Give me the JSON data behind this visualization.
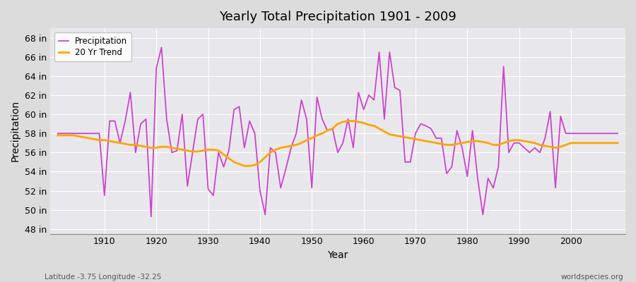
{
  "title": "Yearly Total Precipitation 1901 - 2009",
  "xlabel": "Year",
  "ylabel": "Precipitation",
  "subtitle_left": "Latitude -3.75 Longitude -32.25",
  "subtitle_right": "worldspecies.org",
  "years": [
    1901,
    1902,
    1903,
    1904,
    1905,
    1906,
    1907,
    1908,
    1909,
    1910,
    1911,
    1912,
    1913,
    1914,
    1915,
    1916,
    1917,
    1918,
    1919,
    1920,
    1921,
    1922,
    1923,
    1924,
    1925,
    1926,
    1927,
    1928,
    1929,
    1930,
    1931,
    1932,
    1933,
    1934,
    1935,
    1936,
    1937,
    1938,
    1939,
    1940,
    1941,
    1942,
    1943,
    1944,
    1945,
    1946,
    1947,
    1948,
    1949,
    1950,
    1951,
    1952,
    1953,
    1954,
    1955,
    1956,
    1957,
    1958,
    1959,
    1960,
    1961,
    1962,
    1963,
    1964,
    1965,
    1966,
    1967,
    1968,
    1969,
    1970,
    1971,
    1972,
    1973,
    1974,
    1975,
    1976,
    1977,
    1978,
    1979,
    1980,
    1981,
    1982,
    1983,
    1984,
    1985,
    1986,
    1987,
    1988,
    1989,
    1990,
    1991,
    1992,
    1993,
    1994,
    1995,
    1996,
    1997,
    1998,
    1999,
    2000,
    2001,
    2002,
    2003,
    2004,
    2005,
    2006,
    2007,
    2008,
    2009
  ],
  "precip": [
    58.0,
    58.0,
    58.0,
    58.0,
    58.0,
    58.0,
    58.0,
    58.0,
    58.0,
    51.5,
    59.3,
    59.3,
    57.0,
    59.3,
    62.3,
    56.0,
    59.0,
    59.5,
    49.3,
    64.8,
    67.0,
    59.5,
    56.0,
    56.2,
    60.0,
    52.5,
    56.0,
    59.5,
    60.0,
    52.2,
    51.5,
    56.0,
    54.5,
    56.2,
    60.5,
    60.8,
    56.5,
    59.3,
    58.0,
    52.0,
    49.5,
    56.5,
    56.0,
    52.3,
    54.3,
    56.5,
    58.0,
    61.5,
    59.5,
    52.3,
    61.8,
    59.5,
    58.3,
    58.5,
    56.0,
    57.0,
    59.5,
    56.5,
    62.3,
    60.5,
    62.0,
    61.5,
    66.5,
    59.5,
    66.5,
    62.8,
    62.5,
    55.0,
    55.0,
    58.0,
    59.0,
    58.8,
    58.5,
    57.5,
    57.5,
    53.8,
    54.5,
    58.3,
    56.5,
    53.5,
    58.3,
    53.3,
    49.5,
    53.3,
    52.3,
    54.5,
    65.0,
    56.0,
    57.0,
    57.0,
    56.5,
    56.0,
    56.5,
    56.0,
    57.5,
    60.3,
    52.3,
    59.8,
    58.0,
    58.0,
    58.0,
    58.0,
    58.0,
    58.0,
    58.0,
    58.0,
    58.0,
    58.0,
    58.0
  ],
  "trend": [
    57.8,
    57.8,
    57.8,
    57.8,
    57.7,
    57.6,
    57.5,
    57.4,
    57.3,
    57.3,
    57.2,
    57.1,
    57.0,
    56.9,
    56.8,
    56.8,
    56.7,
    56.6,
    56.5,
    56.5,
    56.6,
    56.6,
    56.5,
    56.4,
    56.3,
    56.2,
    56.1,
    56.1,
    56.2,
    56.3,
    56.3,
    56.2,
    55.8,
    55.4,
    55.0,
    54.8,
    54.6,
    54.6,
    54.7,
    55.0,
    55.5,
    56.0,
    56.3,
    56.5,
    56.6,
    56.7,
    56.8,
    57.0,
    57.3,
    57.5,
    57.8,
    58.0,
    58.3,
    58.5,
    59.0,
    59.2,
    59.3,
    59.3,
    59.2,
    59.1,
    58.9,
    58.8,
    58.5,
    58.2,
    57.9,
    57.8,
    57.7,
    57.6,
    57.5,
    57.4,
    57.3,
    57.2,
    57.1,
    57.0,
    56.9,
    56.8,
    56.8,
    56.9,
    57.0,
    57.1,
    57.2,
    57.2,
    57.1,
    57.0,
    56.8,
    56.8,
    57.0,
    57.2,
    57.3,
    57.3,
    57.2,
    57.1,
    57.0,
    56.8,
    56.7,
    56.6,
    56.5,
    56.6,
    56.8,
    57.0,
    57.0,
    57.0,
    57.0,
    57.0,
    57.0,
    57.0,
    57.0,
    57.0,
    57.0
  ],
  "precip_color": "#CC44CC",
  "trend_color": "#FFA500",
  "bg_color": "#DCDCDC",
  "plot_bg_color": "#E8E8EC",
  "grid_color": "#FFFFFF",
  "ylim": [
    47.5,
    69.0
  ],
  "yticks": [
    48,
    50,
    52,
    54,
    56,
    58,
    60,
    62,
    64,
    66,
    68
  ],
  "xtick_years": [
    1910,
    1920,
    1930,
    1940,
    1950,
    1960,
    1970,
    1980,
    1990,
    2000
  ],
  "legend_labels": [
    "Precipitation",
    "20 Yr Trend"
  ],
  "figsize": [
    9.0,
    4.0
  ],
  "dpi": 100
}
